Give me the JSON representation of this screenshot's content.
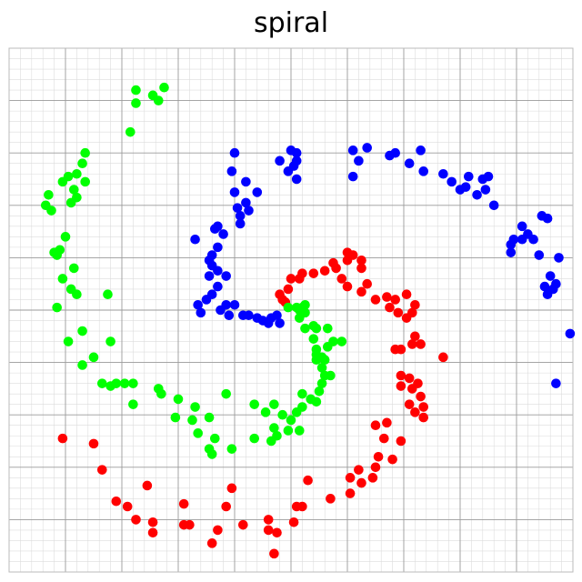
{
  "chart_data": {
    "type": "scatter",
    "title": "spiral",
    "xlabel": "",
    "ylabel": "",
    "xlim": [
      -1.0,
      1.0
    ],
    "ylim": [
      -1.0,
      1.0
    ],
    "grid": true,
    "minor_grid": true,
    "series": [
      {
        "color": "#0000ff",
        "points": [
          [
            -0.2,
            0.6
          ],
          [
            -0.21,
            0.53
          ],
          [
            -0.16,
            0.49
          ],
          [
            -0.2,
            0.45
          ],
          [
            -0.12,
            0.45
          ],
          [
            -0.16,
            0.41
          ],
          [
            -0.15,
            0.38
          ],
          [
            -0.19,
            0.39
          ],
          [
            -0.18,
            0.36
          ],
          [
            -0.18,
            0.33
          ],
          [
            -0.26,
            0.32
          ],
          [
            -0.24,
            0.29
          ],
          [
            -0.27,
            0.31
          ],
          [
            -0.34,
            0.27
          ],
          [
            -0.26,
            0.24
          ],
          [
            -0.28,
            0.21
          ],
          [
            -0.29,
            0.19
          ],
          [
            -0.28,
            0.17
          ],
          [
            -0.26,
            0.15
          ],
          [
            -0.23,
            0.13
          ],
          [
            -0.29,
            0.13
          ],
          [
            -0.26,
            0.09
          ],
          [
            -0.28,
            0.06
          ],
          [
            -0.3,
            0.04
          ],
          [
            -0.33,
            0.02
          ],
          [
            -0.23,
            0.02
          ],
          [
            -0.2,
            0.02
          ],
          [
            -0.25,
            0.0
          ],
          [
            -0.32,
            -0.01
          ],
          [
            -0.22,
            -0.02
          ],
          [
            -0.17,
            -0.02
          ],
          [
            -0.15,
            -0.02
          ],
          [
            -0.12,
            -0.03
          ],
          [
            -0.1,
            -0.04
          ],
          [
            -0.07,
            -0.03
          ],
          [
            -0.05,
            -0.02
          ],
          [
            -0.08,
            -0.05
          ],
          [
            -0.04,
            -0.05
          ],
          [
            0.02,
            0.6
          ],
          [
            0.02,
            0.57
          ],
          [
            0.01,
            0.55
          ],
          [
            0.0,
            0.61
          ],
          [
            -0.04,
            0.57
          ],
          [
            -0.01,
            0.53
          ],
          [
            0.02,
            0.5
          ],
          [
            0.22,
            0.61
          ],
          [
            0.27,
            0.62
          ],
          [
            0.24,
            0.57
          ],
          [
            0.22,
            0.51
          ],
          [
            0.35,
            0.59
          ],
          [
            0.37,
            0.6
          ],
          [
            0.42,
            0.56
          ],
          [
            0.46,
            0.61
          ],
          [
            0.47,
            0.53
          ],
          [
            0.54,
            0.52
          ],
          [
            0.57,
            0.49
          ],
          [
            0.63,
            0.51
          ],
          [
            0.6,
            0.46
          ],
          [
            0.62,
            0.47
          ],
          [
            0.66,
            0.44
          ],
          [
            0.68,
            0.5
          ],
          [
            0.7,
            0.51
          ],
          [
            0.69,
            0.46
          ],
          [
            0.72,
            0.4
          ],
          [
            0.89,
            0.36
          ],
          [
            0.91,
            0.35
          ],
          [
            0.82,
            0.32
          ],
          [
            0.84,
            0.29
          ],
          [
            0.79,
            0.27
          ],
          [
            0.82,
            0.27
          ],
          [
            0.86,
            0.27
          ],
          [
            0.78,
            0.25
          ],
          [
            0.78,
            0.22
          ],
          [
            0.88,
            0.21
          ],
          [
            0.95,
            0.2
          ],
          [
            0.92,
            0.13
          ],
          [
            0.9,
            0.09
          ],
          [
            0.94,
            0.1
          ],
          [
            0.93,
            0.08
          ],
          [
            0.91,
            0.06
          ],
          [
            0.99,
            -0.09
          ],
          [
            0.94,
            -0.28
          ]
        ]
      },
      {
        "color": "#ff0000",
        "points": [
          [
            -0.04,
            0.06
          ],
          [
            -0.03,
            0.04
          ],
          [
            -0.02,
            0.03
          ],
          [
            -0.01,
            0.08
          ],
          [
            0.0,
            0.12
          ],
          [
            0.03,
            0.12
          ],
          [
            0.04,
            0.14
          ],
          [
            0.08,
            0.14
          ],
          [
            0.12,
            0.15
          ],
          [
            0.16,
            0.16
          ],
          [
            0.15,
            0.18
          ],
          [
            0.2,
            0.19
          ],
          [
            0.22,
            0.21
          ],
          [
            0.2,
            0.22
          ],
          [
            0.25,
            0.19
          ],
          [
            0.25,
            0.16
          ],
          [
            0.18,
            0.12
          ],
          [
            0.2,
            0.09
          ],
          [
            0.27,
            0.1
          ],
          [
            0.25,
            0.07
          ],
          [
            0.3,
            0.04
          ],
          [
            0.34,
            0.05
          ],
          [
            0.37,
            0.04
          ],
          [
            0.35,
            0.01
          ],
          [
            0.38,
            -0.01
          ],
          [
            0.41,
            0.06
          ],
          [
            0.44,
            0.02
          ],
          [
            0.43,
            -0.01
          ],
          [
            0.41,
            -0.03
          ],
          [
            0.37,
            -0.15
          ],
          [
            0.39,
            -0.15
          ],
          [
            0.43,
            -0.13
          ],
          [
            0.44,
            -0.1
          ],
          [
            0.46,
            -0.13
          ],
          [
            0.54,
            -0.18
          ],
          [
            0.39,
            -0.25
          ],
          [
            0.42,
            -0.26
          ],
          [
            0.39,
            -0.29
          ],
          [
            0.43,
            -0.3
          ],
          [
            0.45,
            -0.28
          ],
          [
            0.46,
            -0.33
          ],
          [
            0.47,
            -0.37
          ],
          [
            0.44,
            -0.39
          ],
          [
            0.42,
            -0.36
          ],
          [
            0.47,
            -0.41
          ],
          [
            0.34,
            -0.43
          ],
          [
            0.3,
            -0.44
          ],
          [
            0.33,
            -0.49
          ],
          [
            0.39,
            -0.5
          ],
          [
            0.31,
            -0.56
          ],
          [
            0.36,
            -0.57
          ],
          [
            0.3,
            -0.6
          ],
          [
            0.24,
            -0.61
          ],
          [
            0.29,
            -0.64
          ],
          [
            0.25,
            -0.66
          ],
          [
            0.21,
            -0.7
          ],
          [
            0.21,
            -0.64
          ],
          [
            0.06,
            -0.65
          ],
          [
            0.14,
            -0.72
          ],
          [
            0.04,
            -0.75
          ],
          [
            0.02,
            -0.75
          ],
          [
            0.01,
            -0.81
          ],
          [
            -0.05,
            -0.85
          ],
          [
            -0.08,
            -0.8
          ],
          [
            -0.08,
            -0.84
          ],
          [
            -0.06,
            -0.93
          ],
          [
            -0.17,
            -0.82
          ],
          [
            -0.21,
            -0.68
          ],
          [
            -0.23,
            -0.75
          ],
          [
            -0.26,
            -0.84
          ],
          [
            -0.28,
            -0.89
          ],
          [
            -0.36,
            -0.82
          ],
          [
            -0.38,
            -0.82
          ],
          [
            -0.38,
            -0.74
          ],
          [
            -0.49,
            -0.81
          ],
          [
            -0.49,
            -0.85
          ],
          [
            -0.51,
            -0.67
          ],
          [
            -0.55,
            -0.8
          ],
          [
            -0.58,
            -0.75
          ],
          [
            -0.62,
            -0.73
          ],
          [
            -0.67,
            -0.61
          ],
          [
            -0.7,
            -0.51
          ],
          [
            -0.81,
            -0.49
          ]
        ]
      },
      {
        "color": "#00ff00",
        "points": [
          [
            -0.55,
            0.84
          ],
          [
            -0.45,
            0.85
          ],
          [
            -0.49,
            0.82
          ],
          [
            -0.55,
            0.79
          ],
          [
            -0.47,
            0.8
          ],
          [
            -0.57,
            0.68
          ],
          [
            -0.73,
            0.6
          ],
          [
            -0.74,
            0.56
          ],
          [
            -0.79,
            0.51
          ],
          [
            -0.76,
            0.52
          ],
          [
            -0.73,
            0.49
          ],
          [
            -0.81,
            0.49
          ],
          [
            -0.77,
            0.46
          ],
          [
            -0.86,
            0.44
          ],
          [
            -0.76,
            0.43
          ],
          [
            -0.78,
            0.41
          ],
          [
            -0.87,
            0.4
          ],
          [
            -0.85,
            0.38
          ],
          [
            -0.8,
            0.28
          ],
          [
            -0.82,
            0.23
          ],
          [
            -0.84,
            0.22
          ],
          [
            -0.83,
            0.21
          ],
          [
            -0.77,
            0.16
          ],
          [
            -0.81,
            0.12
          ],
          [
            -0.78,
            0.08
          ],
          [
            -0.76,
            0.06
          ],
          [
            -0.65,
            0.06
          ],
          [
            -0.83,
            0.01
          ],
          [
            -0.74,
            -0.08
          ],
          [
            -0.79,
            -0.12
          ],
          [
            -0.64,
            -0.12
          ],
          [
            -0.7,
            -0.18
          ],
          [
            -0.74,
            -0.21
          ],
          [
            -0.67,
            -0.28
          ],
          [
            -0.64,
            -0.29
          ],
          [
            -0.62,
            -0.28
          ],
          [
            -0.59,
            -0.28
          ],
          [
            -0.56,
            -0.28
          ],
          [
            -0.56,
            -0.36
          ],
          [
            -0.47,
            -0.3
          ],
          [
            -0.46,
            -0.32
          ],
          [
            -0.4,
            -0.34
          ],
          [
            -0.41,
            -0.41
          ],
          [
            -0.34,
            -0.37
          ],
          [
            -0.35,
            -0.42
          ],
          [
            -0.33,
            -0.47
          ],
          [
            -0.29,
            -0.41
          ],
          [
            -0.27,
            -0.49
          ],
          [
            -0.29,
            -0.53
          ],
          [
            -0.28,
            -0.55
          ],
          [
            -0.23,
            -0.32
          ],
          [
            -0.13,
            -0.36
          ],
          [
            -0.21,
            -0.53
          ],
          [
            -0.13,
            -0.49
          ],
          [
            -0.09,
            -0.39
          ],
          [
            -0.06,
            -0.45
          ],
          [
            -0.07,
            -0.5
          ],
          [
            -0.03,
            -0.4
          ],
          [
            -0.01,
            -0.46
          ],
          [
            0.0,
            -0.42
          ],
          [
            0.02,
            -0.39
          ],
          [
            0.04,
            -0.32
          ],
          [
            0.04,
            -0.37
          ],
          [
            -0.06,
            -0.36
          ],
          [
            -0.05,
            -0.48
          ],
          [
            0.03,
            -0.46
          ],
          [
            0.07,
            -0.34
          ],
          [
            0.09,
            -0.35
          ],
          [
            0.1,
            -0.31
          ],
          [
            0.12,
            -0.25
          ],
          [
            0.11,
            -0.28
          ],
          [
            0.14,
            -0.25
          ],
          [
            0.11,
            -0.22
          ],
          [
            0.09,
            -0.19
          ],
          [
            0.12,
            -0.19
          ],
          [
            0.09,
            -0.15
          ],
          [
            0.08,
            -0.11
          ],
          [
            0.13,
            -0.14
          ],
          [
            0.15,
            -0.12
          ],
          [
            0.18,
            -0.12
          ],
          [
            0.13,
            -0.07
          ],
          [
            0.08,
            -0.06
          ],
          [
            0.05,
            -0.07
          ],
          [
            0.03,
            -0.03
          ],
          [
            0.05,
            -0.01
          ],
          [
            0.04,
            0.01
          ],
          [
            0.02,
            0.01
          ],
          [
            0.05,
            0.02
          ],
          [
            0.09,
            -0.07
          ],
          [
            0.09,
            -0.17
          ],
          [
            0.11,
            -0.18
          ],
          [
            -0.01,
            0.01
          ],
          [
            0.03,
            0.0
          ]
        ]
      }
    ]
  }
}
